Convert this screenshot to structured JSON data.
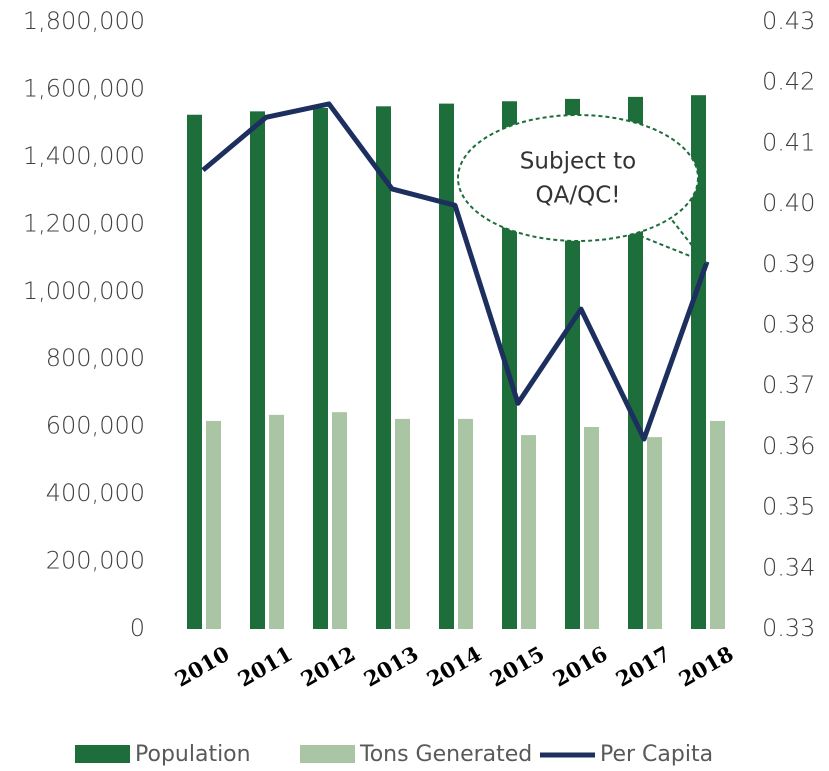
{
  "chart_data": {
    "type": "bar_line",
    "categories": [
      "2010",
      "2011",
      "2012",
      "2013",
      "2014",
      "2015",
      "2016",
      "2017",
      "2018"
    ],
    "series": [
      {
        "name": "Population",
        "color": "#1e6e3c",
        "type": "bar",
        "values": [
          1525000,
          1535000,
          1545000,
          1550000,
          1558000,
          1565000,
          1572000,
          1578000,
          1583000
        ]
      },
      {
        "name": "Tons Generated",
        "color": "#a9c5a4",
        "type": "bar",
        "values": [
          617000,
          635000,
          643000,
          623000,
          623000,
          575000,
          599000,
          569000,
          617000
        ]
      },
      {
        "name": "Per Capita",
        "color": "#1c2f5e",
        "type": "line",
        "axis": "y2",
        "values": [
          0.4056,
          0.4143,
          0.4165,
          0.4025,
          0.3998,
          0.3672,
          0.3827,
          0.3613,
          0.3905
        ]
      }
    ],
    "ylim": [
      0,
      1800000
    ],
    "yticks": [
      0,
      {
        "value": 200000,
        "label": "200,000"
      },
      {
        "value": 400000,
        "label": "400,000"
      },
      {
        "value": 600000,
        "label": "600,000"
      },
      {
        "value": 800000,
        "label": "800,000"
      },
      {
        "value": 1000000,
        "label": "1,000,000"
      },
      {
        "value": 1200000,
        "label": "1,200,000"
      },
      {
        "value": 1400000,
        "label": "1,400,000"
      },
      {
        "value": 1600000,
        "label": "1,600,000"
      },
      {
        "value": 1800000,
        "label": "1,800,000"
      }
    ],
    "y2lim": [
      0.33,
      0.43
    ],
    "y2ticks": [
      0.33,
      0.34,
      0.35,
      0.36,
      0.37,
      0.38,
      0.39,
      0.4,
      0.41,
      0.42,
      0.43
    ],
    "annotation": [
      "Subject to",
      "QA/QC!"
    ],
    "legend": "bottom"
  }
}
